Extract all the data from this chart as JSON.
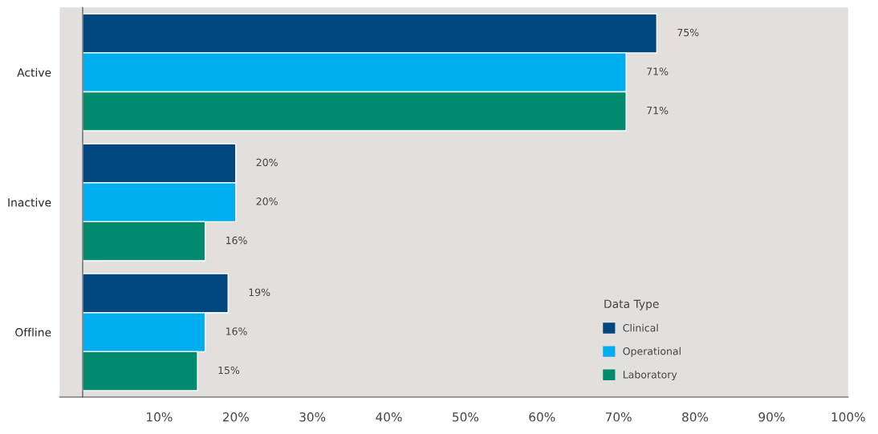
{
  "chart_data": {
    "type": "bar",
    "orientation": "horizontal",
    "categories": [
      "Active",
      "Inactive",
      "Offline"
    ],
    "series": [
      {
        "name": "Clinical",
        "color": "#00467f",
        "values": [
          75,
          20,
          19
        ],
        "value_labels": [
          "75%",
          "20%",
          "19%"
        ]
      },
      {
        "name": "Operational",
        "color": "#00adef",
        "values": [
          71,
          20,
          16
        ],
        "value_labels": [
          "71%",
          "20%",
          "16%"
        ]
      },
      {
        "name": "Laboratory",
        "color": "#008a6e",
        "values": [
          71,
          16,
          15
        ],
        "value_labels": [
          "71%",
          "16%",
          "15%"
        ]
      }
    ],
    "legend_title": "Data Type",
    "legend": "bottom right",
    "xlim": [
      -3,
      100
    ],
    "xticks": [
      {
        "value": 10,
        "label": "10%"
      },
      {
        "value": 20,
        "label": "20%"
      },
      {
        "value": 30,
        "label": "30%"
      },
      {
        "value": 40,
        "label": "40%"
      },
      {
        "value": 50,
        "label": "50%"
      },
      {
        "value": 60,
        "label": "60%"
      },
      {
        "value": 70,
        "label": "70%"
      },
      {
        "value": 80,
        "label": "80%"
      },
      {
        "value": 90,
        "label": "90%"
      },
      {
        "value": 100,
        "label": "100%"
      }
    ],
    "grid": false
  }
}
